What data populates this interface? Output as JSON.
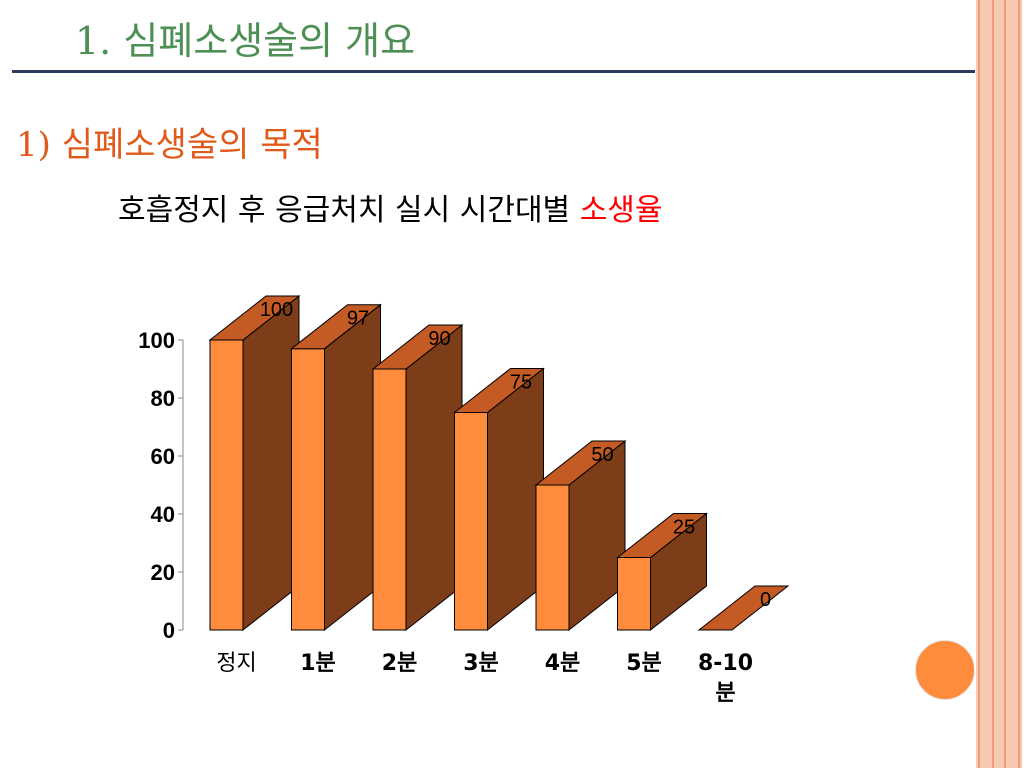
{
  "slide": {
    "title": "1. 심폐소생술의 개요",
    "subtitle": "1) 심폐소생술의 목적",
    "caption_main": "호흡정지 후 응급처치 실시 시간대별 ",
    "caption_highlight": "소생율"
  },
  "colors": {
    "bar_front": "#ff8c3c",
    "bar_side": "#7d3d18",
    "bar_top": "#c45a24",
    "title": "#4e8f56",
    "subtitle": "#e05a1c",
    "highlight": "#ff0000"
  },
  "chart_data": {
    "type": "bar",
    "style": "3d",
    "categories": [
      "정지",
      "1분",
      "2분",
      "3분",
      "4분",
      "5분",
      "8-10 분"
    ],
    "values": [
      100,
      97,
      90,
      75,
      50,
      25,
      0
    ],
    "value_labels": [
      "100",
      "97",
      "90",
      "75",
      "50",
      "25",
      "0"
    ],
    "yticks": [
      "0",
      "20",
      "40",
      "60",
      "80",
      "100"
    ],
    "ylim": [
      0,
      100
    ],
    "grid": false,
    "legend": false,
    "title": "",
    "xlabel": "",
    "ylabel": ""
  }
}
